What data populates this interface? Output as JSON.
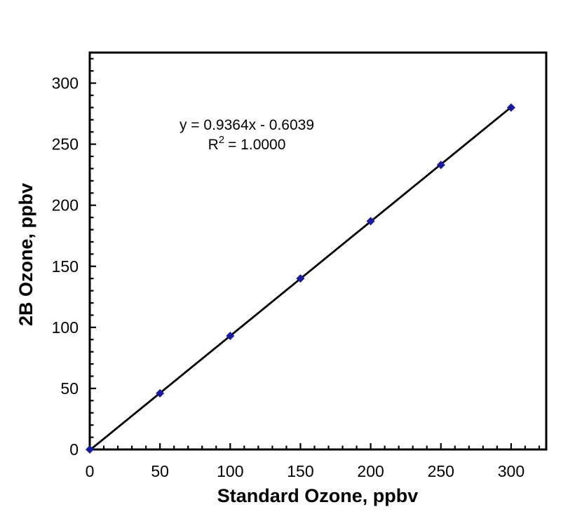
{
  "page": {
    "background_color": "#ffffff"
  },
  "chart_data": {
    "type": "scatter",
    "title": "",
    "xlabel": "Standard Ozone, ppbv",
    "ylabel": "2B Ozone, ppbv",
    "x": [
      0,
      50,
      100,
      150,
      200,
      250,
      300
    ],
    "y": [
      0,
      46,
      93,
      140,
      187,
      233,
      280
    ],
    "xlim": [
      0,
      325
    ],
    "ylim": [
      0,
      325
    ],
    "x_tick_labels": [
      "0",
      "50",
      "100",
      "150",
      "200",
      "250",
      "300"
    ],
    "y_tick_labels": [
      "0",
      "50",
      "100",
      "150",
      "200",
      "250",
      "300"
    ],
    "major_tick_step": 50,
    "minor_tick_step": 10,
    "grid": false,
    "legend": false,
    "marker": {
      "shape": "diamond",
      "color": "#1a1aa0",
      "size": 12
    },
    "trendline": {
      "slope": 0.9364,
      "intercept": -0.6039,
      "x_start": 0,
      "x_end": 300,
      "color": "#000000",
      "width": 2.8
    },
    "annotation": {
      "equation": "y = 0.9364x - 0.6039",
      "r2_base": "R",
      "r2_sup": "2",
      "r2_rest": "= 1.0000"
    },
    "axis_color": "#000000",
    "text_color": "#000000"
  }
}
